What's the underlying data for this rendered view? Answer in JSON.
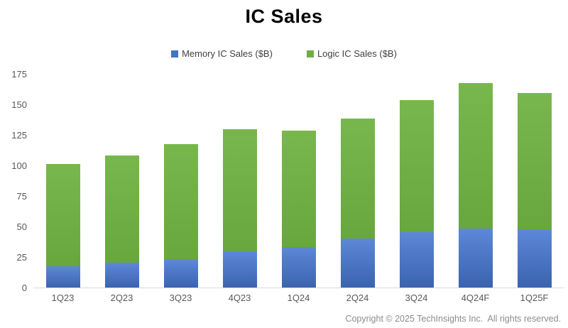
{
  "page": {
    "title": "IC Sales",
    "footer": "Copyright © 2025 TechInsights Inc.  All rights reserved."
  },
  "legend": [
    {
      "label": "Memory IC Sales ($B)",
      "color": "#4472c4"
    },
    {
      "label": "Logic IC Sales ($B)",
      "color": "#70ad47"
    }
  ],
  "chart_data": {
    "type": "bar",
    "stacked": true,
    "title": "IC Sales",
    "categories": [
      "1Q23",
      "2Q23",
      "3Q23",
      "4Q23",
      "1Q24",
      "2Q24",
      "3Q24",
      "4Q24F",
      "1Q25F"
    ],
    "series": [
      {
        "name": "Memory IC Sales ($B)",
        "color": "#4472c4",
        "values": [
          18,
          21,
          23,
          30,
          34,
          41,
          46,
          49,
          48
        ]
      },
      {
        "name": "Logic IC Sales ($B)",
        "color": "#70ad47",
        "values": [
          84,
          88,
          95,
          100,
          95,
          98,
          108,
          119,
          112
        ]
      }
    ],
    "totals": [
      102,
      109,
      118,
      130,
      129,
      139,
      154,
      168,
      160
    ],
    "xlabel": "",
    "ylabel": "",
    "ylim": [
      0,
      175
    ],
    "yticks": [
      0,
      25,
      50,
      75,
      100,
      125,
      150,
      175
    ],
    "grid": false,
    "legend_position": "top"
  },
  "colors": {
    "memory": "#4472c4",
    "logic": "#70ad47",
    "axis_line": "#d9d9d9",
    "tick_label": "#595959",
    "footer_text": "#8c8c8c"
  }
}
